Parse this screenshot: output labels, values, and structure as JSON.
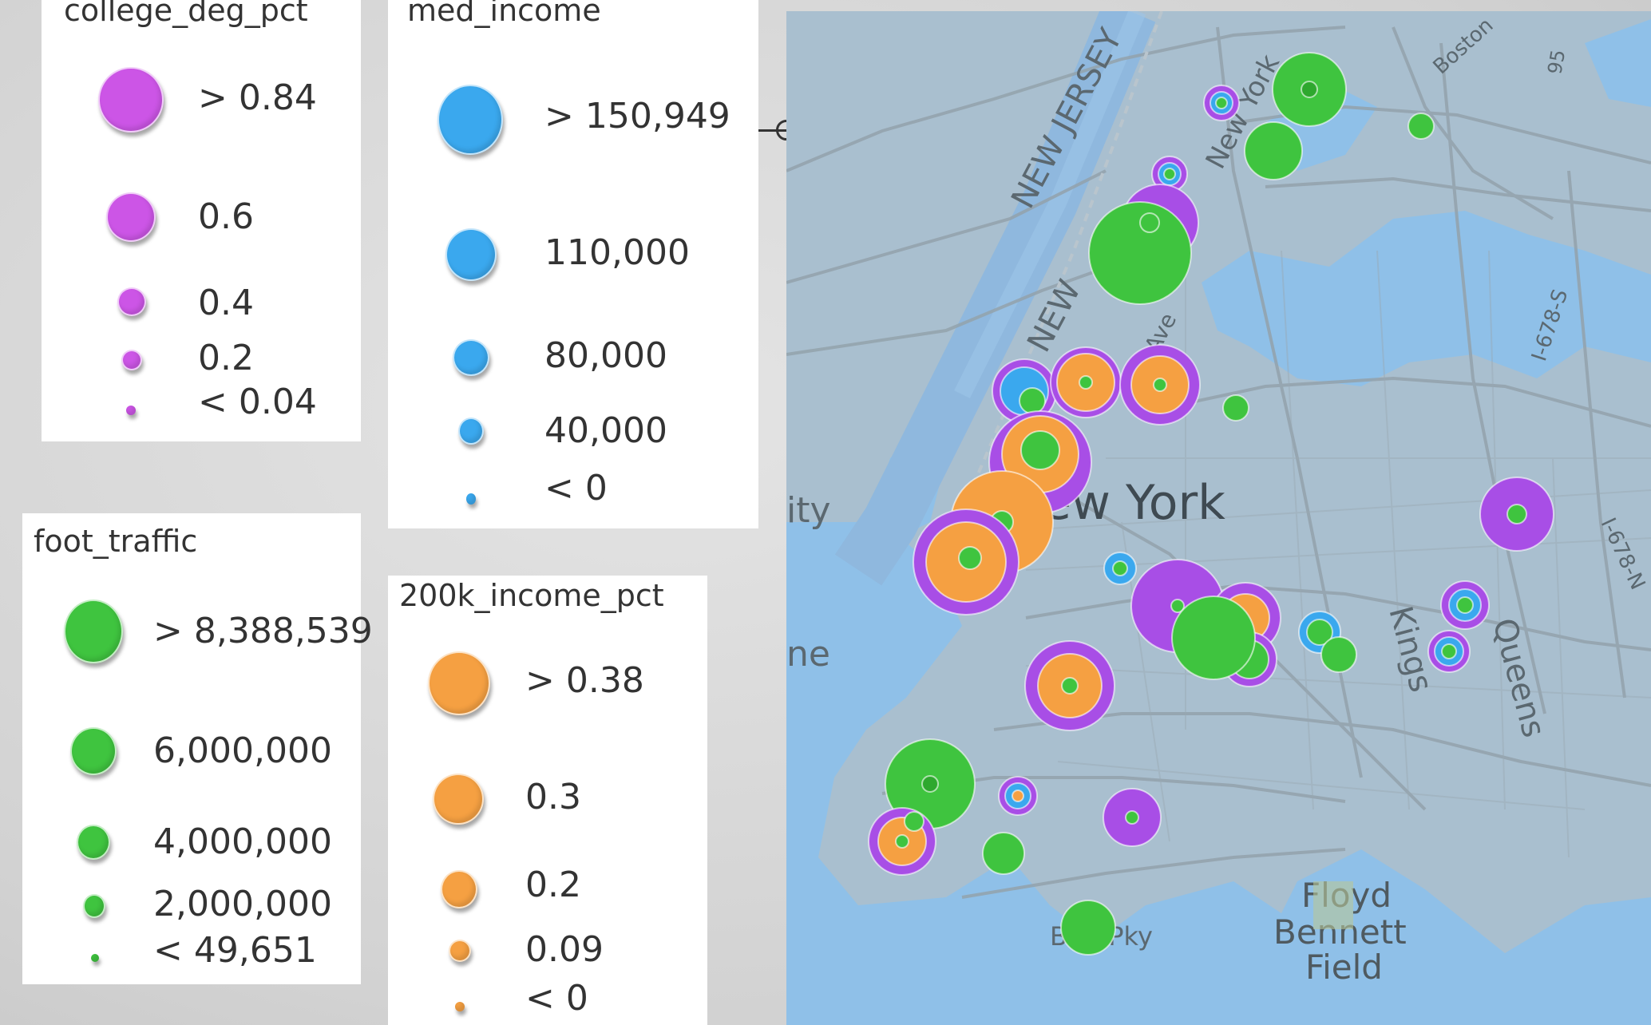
{
  "legends": {
    "college": {
      "title": "college_deg_pct",
      "color": "#cc55e6",
      "items": [
        {
          "label": "> 0.84"
        },
        {
          "label": "0.6"
        },
        {
          "label": "0.4"
        },
        {
          "label": "0.2"
        },
        {
          "label": "< 0.04"
        }
      ]
    },
    "income": {
      "title": "med_income",
      "color": "#3aa8ee",
      "items": [
        {
          "label": "> 150,949"
        },
        {
          "label": "110,000"
        },
        {
          "label": "80,000"
        },
        {
          "label": "40,000"
        },
        {
          "label": "< 0"
        }
      ]
    },
    "foot": {
      "title": "foot_traffic",
      "color": "#3fc43f",
      "items": [
        {
          "label": "> 8,388,539"
        },
        {
          "label": "6,000,000"
        },
        {
          "label": "4,000,000"
        },
        {
          "label": "2,000,000"
        },
        {
          "label": "< 49,651"
        }
      ]
    },
    "k200": {
      "title": "200k_income_pct",
      "color": "#f5a042",
      "items": [
        {
          "label": "> 0.38"
        },
        {
          "label": "0.3"
        },
        {
          "label": "0.2"
        },
        {
          "label": "0.09"
        },
        {
          "label": "< 0"
        }
      ]
    }
  },
  "map": {
    "labels": {
      "new_jersey": "NEW JERSEY",
      "new_jersey_2": "NEW",
      "new_york_state": "New York",
      "ave": "Ave",
      "boston": "Boston",
      "route": "95",
      "i678s": "I-678-S",
      "i678n": "I-678-N",
      "city": "ity",
      "new_york": "ew York",
      "ne": "ne",
      "kings": "Kings",
      "queens": "Queens",
      "floyd": "Floyd",
      "bennett": "Bennett",
      "field": "Field",
      "belt": "Belt Pky"
    }
  }
}
